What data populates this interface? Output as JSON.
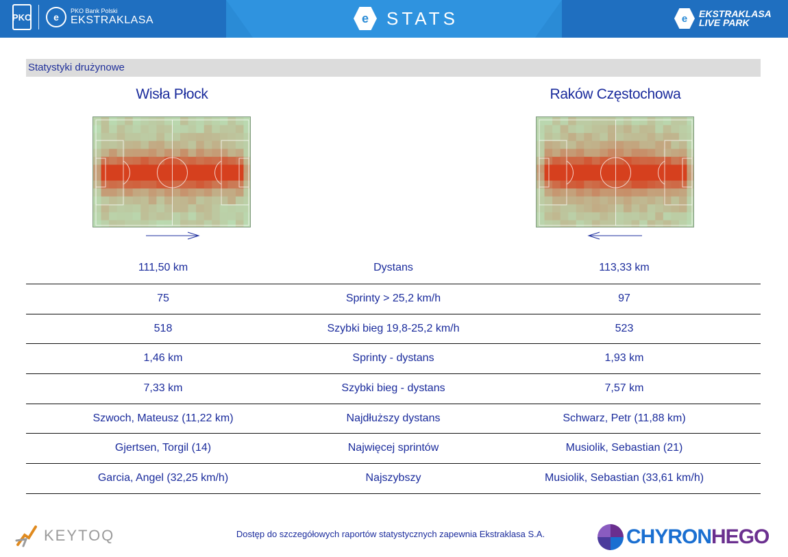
{
  "header": {
    "pko_sponsor": "PKO Bank Polski",
    "league_name": "EKSTRAKLASA",
    "pko_mark": "PKO",
    "stats_label": "STATS",
    "livepark_line1": "EKSTRAKLASA",
    "livepark_line2": "LIVE PARK"
  },
  "section": {
    "title": "Statystyki drużynowe"
  },
  "teams": {
    "home": {
      "name": "Wisła Płock",
      "direction": "right"
    },
    "away": {
      "name": "Raków Częstochowa",
      "direction": "left"
    }
  },
  "stats_rows": [
    {
      "home": "111,50 km",
      "label": "Dystans",
      "away": "113,33 km"
    },
    {
      "home": "75",
      "label": "Sprinty > 25,2 km/h",
      "away": "97"
    },
    {
      "home": "518",
      "label": "Szybki bieg 19,8-25,2 km/h",
      "away": "523"
    },
    {
      "home": "1,46 km",
      "label": "Sprinty - dystans",
      "away": "1,93 km"
    },
    {
      "home": "7,33 km",
      "label": "Szybki bieg - dystans",
      "away": "7,57 km"
    },
    {
      "home": "Szwoch, Mateusz (11,22 km)",
      "label": "Najdłuższy dystans",
      "away": "Schwarz, Petr (11,88 km)"
    },
    {
      "home": "Gjertsen, Torgil (14)",
      "label": "Najwięcej sprintów",
      "away": "Musiolik, Sebastian (21)"
    },
    {
      "home": "Garcia, Angel (32,25 km/h)",
      "label": "Najszybszy",
      "away": "Musiolik, Sebastian (33,61 km/h)"
    }
  ],
  "footer": {
    "keytoq": "KEYTOQ",
    "note": "Dostęp do szczegółowych raportów statystycznych zapewnia Ekstraklasa S.A.",
    "chyron_a": "CHYRON",
    "chyron_b": "HEGO"
  },
  "colors": {
    "header_blue": "#2a8bd6",
    "text_blue": "#1a2b9c",
    "heat_hot": "#d9401e",
    "pitch_green": "#b9dcb3"
  },
  "icons": [
    "pko-logo-icon",
    "ekstraklasa-badge-icon",
    "stats-hex-icon",
    "livepark-hex-icon",
    "keytoq-logo-icon",
    "chyronhego-logo-icon"
  ]
}
